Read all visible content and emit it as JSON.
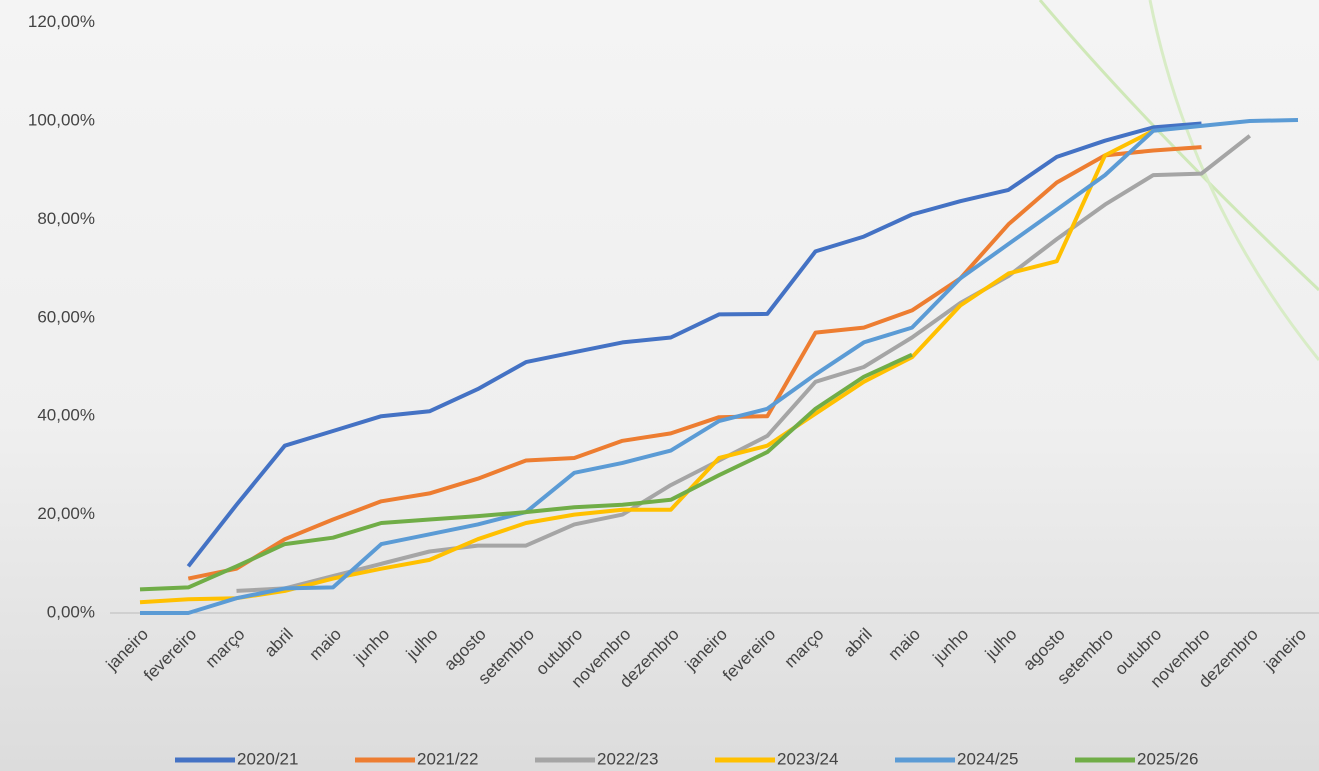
{
  "chart_data": {
    "type": "line",
    "categories": [
      "janeiro",
      "fevereiro",
      "março",
      "abril",
      "maio",
      "junho",
      "julho",
      "agosto",
      "setembro",
      "outubro",
      "novembro",
      "dezembro",
      "janeiro",
      "fevereiro",
      "março",
      "abril",
      "maio",
      "junho",
      "julho",
      "agosto",
      "setembro",
      "outubro",
      "novembro",
      "dezembro",
      "janeiro"
    ],
    "series": [
      {
        "name": "2020/21",
        "color": "#4472c4",
        "values": [
          null,
          9.5,
          22,
          34,
          37,
          40,
          41,
          45.5,
          51,
          53,
          55,
          56,
          60.7,
          60.8,
          73.5,
          76.5,
          81,
          83.7,
          86,
          92.7,
          96,
          98.7,
          99.5,
          null,
          null
        ]
      },
      {
        "name": "2021/22",
        "color": "#ed7d31",
        "values": [
          null,
          7,
          9,
          15,
          19,
          22.7,
          24.3,
          27.3,
          31,
          31.5,
          35,
          36.5,
          39.8,
          40,
          57,
          58,
          61.5,
          68,
          79,
          87.5,
          93,
          94,
          94.7,
          null,
          null
        ]
      },
      {
        "name": "2022/23",
        "color": "#a5a5a5",
        "values": [
          null,
          null,
          4.5,
          5,
          7.5,
          10,
          12.5,
          13.7,
          13.7,
          18,
          20,
          26,
          31,
          36,
          47,
          50,
          56,
          63,
          68.5,
          76,
          83,
          89,
          89.3,
          97,
          null
        ]
      },
      {
        "name": "2023/24",
        "color": "#ffc000",
        "values": [
          2.2,
          2.8,
          3,
          4.5,
          7,
          9,
          10.8,
          15,
          18.3,
          20,
          21,
          21,
          31.5,
          34,
          40.5,
          47,
          52,
          62.5,
          69,
          71.5,
          93,
          98,
          null,
          null,
          null
        ]
      },
      {
        "name": "2024/25",
        "color": "#5b9bd5",
        "values": [
          0,
          0,
          3,
          5,
          5.2,
          14,
          16,
          18,
          20.5,
          28.5,
          30.5,
          33,
          39,
          41.5,
          48.5,
          55,
          58,
          68,
          75,
          82,
          89,
          98,
          99,
          100,
          100.2
        ]
      },
      {
        "name": "2025/26",
        "color": "#70ad47",
        "values": [
          4.8,
          5.2,
          9.5,
          14,
          15.3,
          18.3,
          19,
          19.7,
          20.5,
          21.5,
          22,
          23,
          28,
          32.7,
          41.5,
          48,
          52.5,
          null,
          null,
          null,
          null,
          null,
          null,
          null,
          null
        ]
      }
    ],
    "ylim": [
      0,
      120
    ],
    "yticks": [
      {
        "value": 0,
        "label": "0,00%"
      },
      {
        "value": 20,
        "label": "20,00%"
      },
      {
        "value": 40,
        "label": "40,00%"
      },
      {
        "value": 60,
        "label": "60,00%"
      },
      {
        "value": 80,
        "label": "80,00%"
      },
      {
        "value": 100,
        "label": "100,00%"
      },
      {
        "value": 120,
        "label": "120,00%"
      }
    ],
    "grid": false
  }
}
